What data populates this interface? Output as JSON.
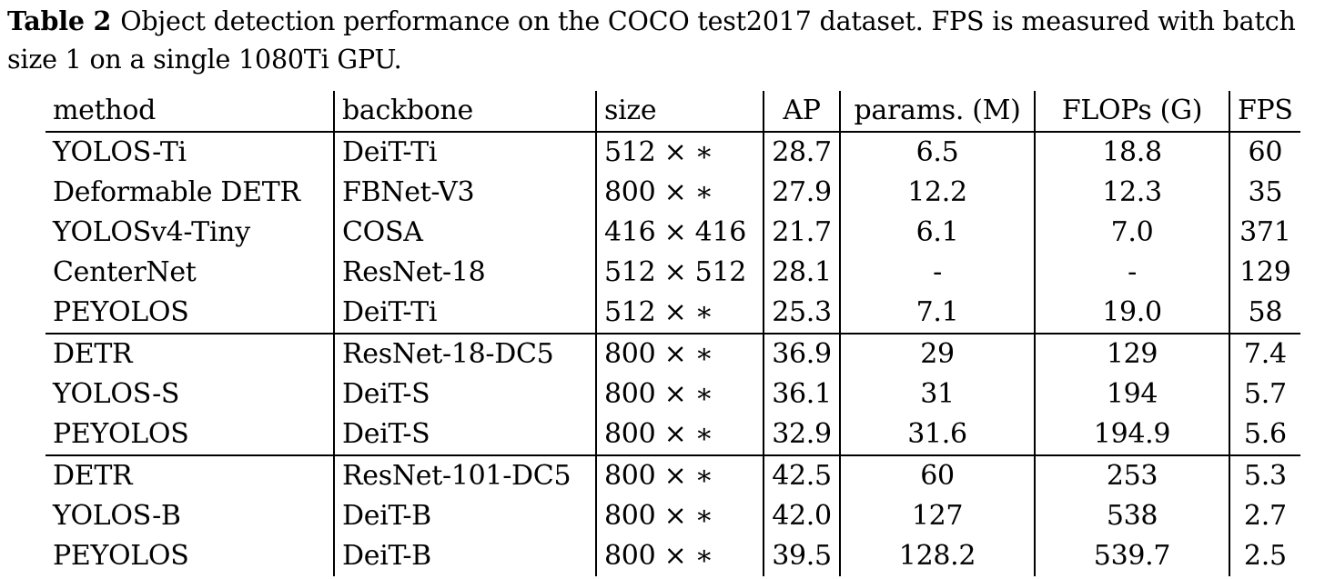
{
  "caption": {
    "label": "Table 2",
    "text": "Object detection performance on the COCO test2017 dataset. FPS is measured with batch size 1 on a single 1080Ti GPU."
  },
  "table": {
    "headers": [
      "method",
      "backbone",
      "size",
      "AP",
      "params. (M)",
      "FLOPs (G)",
      "FPS"
    ],
    "rows": [
      {
        "method": "YOLOS-Ti",
        "backbone": "DeiT-Ti",
        "size": "512 × ∗",
        "ap": "28.7",
        "params": "6.5",
        "flops": "18.8",
        "fps": "60",
        "bold": false,
        "group_end": false
      },
      {
        "method": "Deformable DETR",
        "backbone": "FBNet-V3",
        "size": "800 × ∗",
        "ap": "27.9",
        "params": "12.2",
        "flops": "12.3",
        "fps": "35",
        "bold": false,
        "group_end": false
      },
      {
        "method": "YOLOSv4-Tiny",
        "backbone": "COSA",
        "size": "416 × 416",
        "ap": "21.7",
        "params": "6.1",
        "flops": "7.0",
        "fps": "371",
        "bold": false,
        "group_end": false
      },
      {
        "method": "CenterNet",
        "backbone": "ResNet-18",
        "size": "512 × 512",
        "ap": "28.1",
        "params": "-",
        "flops": "-",
        "fps": "129",
        "bold": false,
        "group_end": false
      },
      {
        "method": "PEYOLOS",
        "backbone": "DeiT-Ti",
        "size": "512 × ∗",
        "ap": "25.3",
        "params": "7.1",
        "flops": "19.0",
        "fps": "58",
        "bold": true,
        "group_end": true
      },
      {
        "method": "DETR",
        "backbone": "ResNet-18-DC5",
        "size": "800 × ∗",
        "ap": "36.9",
        "params": "29",
        "flops": "129",
        "fps": "7.4",
        "bold": false,
        "group_end": false
      },
      {
        "method": "YOLOS-S",
        "backbone": "DeiT-S",
        "size": "800 × ∗",
        "ap": "36.1",
        "params": "31",
        "flops": "194",
        "fps": "5.7",
        "bold": false,
        "group_end": false
      },
      {
        "method": "PEYOLOS",
        "backbone": "DeiT-S",
        "size": "800 × ∗",
        "ap": "32.9",
        "params": "31.6",
        "flops": "194.9",
        "fps": "5.6",
        "bold": true,
        "group_end": true
      },
      {
        "method": "DETR",
        "backbone": "ResNet-101-DC5",
        "size": "800 × ∗",
        "ap": "42.5",
        "params": "60",
        "flops": "253",
        "fps": "5.3",
        "bold": false,
        "group_end": false
      },
      {
        "method": "YOLOS-B",
        "backbone": "DeiT-B",
        "size": "800 × ∗",
        "ap": "42.0",
        "params": "127",
        "flops": "538",
        "fps": "2.7",
        "bold": false,
        "group_end": false
      },
      {
        "method": "PEYOLOS",
        "backbone": "DeiT-B",
        "size": "800 × ∗",
        "ap": "39.5",
        "params": "128.2",
        "flops": "539.7",
        "fps": "2.5",
        "bold": true,
        "group_end": false
      }
    ]
  }
}
